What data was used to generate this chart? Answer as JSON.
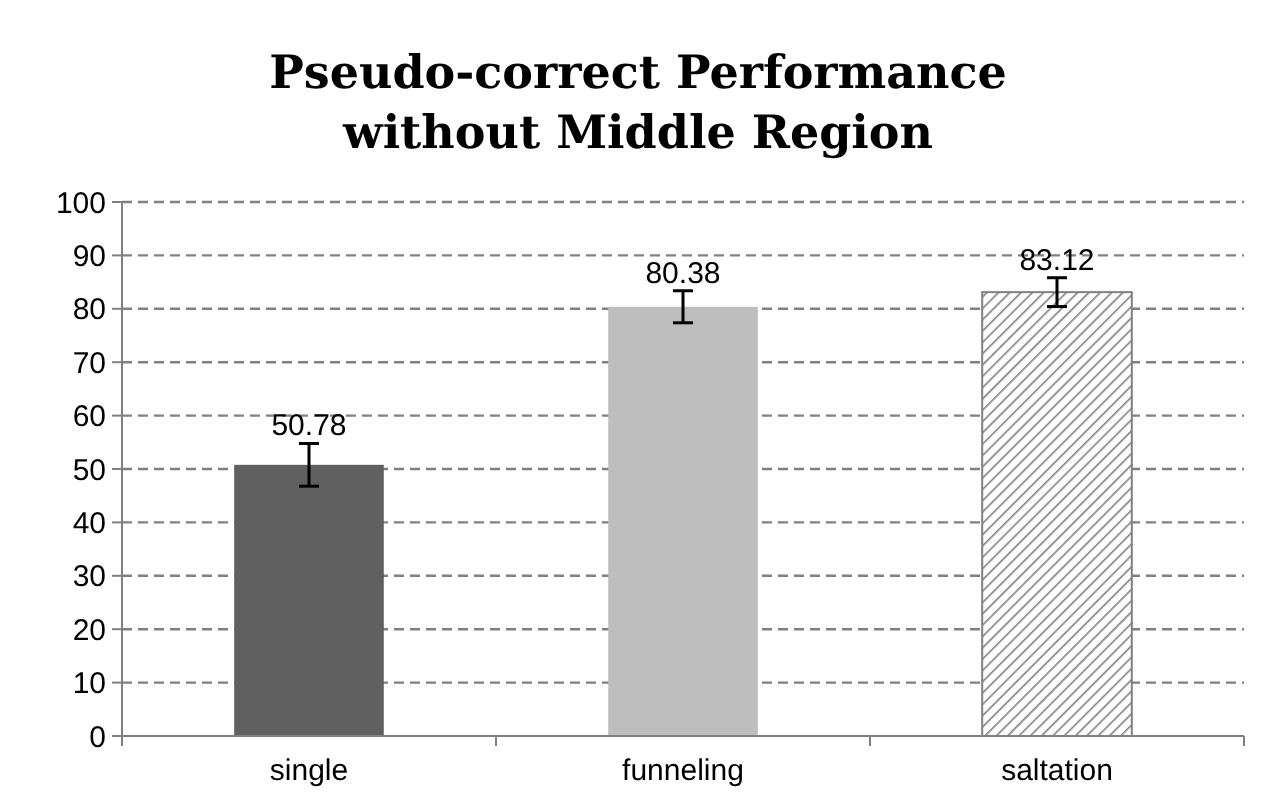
{
  "chart_data": {
    "type": "bar",
    "title": "Pseudo-correct Performance\nwithout Middle Region",
    "categories": [
      "single",
      "funneling",
      "saltation"
    ],
    "values": [
      50.78,
      80.38,
      83.12
    ],
    "errors": [
      4,
      3,
      2.7
    ],
    "colors": [
      "#606060",
      "#bebebe",
      "#808080"
    ],
    "data_labels": true,
    "ylim": [
      0,
      100
    ],
    "yticks": [
      0,
      10,
      20,
      30,
      40,
      50,
      60,
      70,
      80,
      90,
      100
    ],
    "grid": "y"
  }
}
